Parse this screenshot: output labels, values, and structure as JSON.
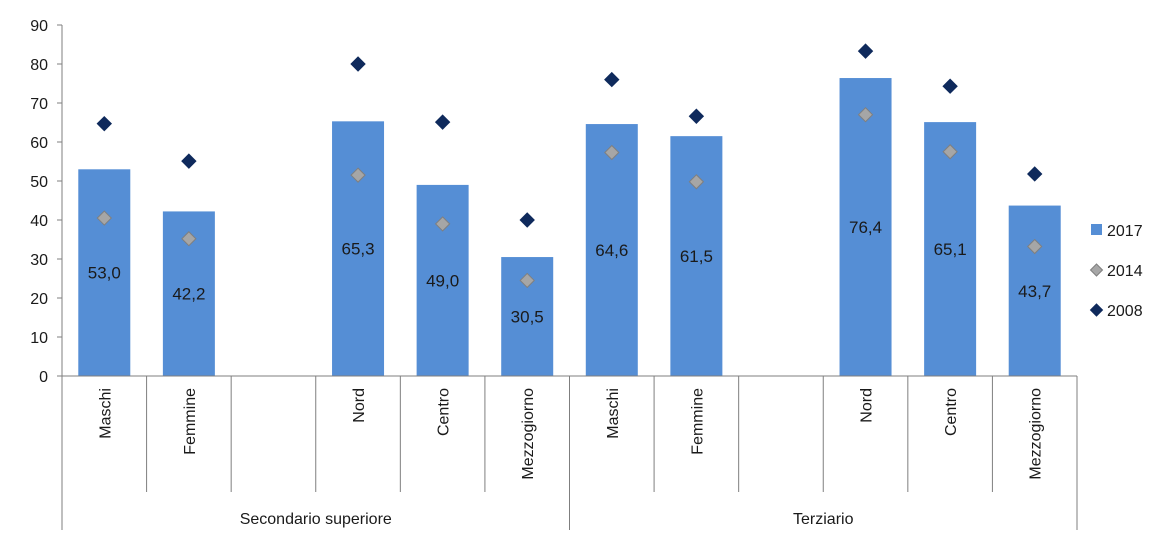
{
  "chart_data": {
    "type": "bar",
    "title": "",
    "xlabel": "",
    "ylabel": "",
    "ylim": [
      0,
      90
    ],
    "yticks": [
      0,
      10,
      20,
      30,
      40,
      50,
      60,
      70,
      80,
      90
    ],
    "grid": false,
    "legend_position": "right",
    "groups": [
      {
        "label": "Secondario superiore",
        "categories": [
          "Maschi",
          "Femmine",
          "",
          "Nord",
          "Centro",
          "Mezzogiorno"
        ]
      },
      {
        "label": "Terziario",
        "categories": [
          "Maschi",
          "Femmine",
          "",
          "Nord",
          "Centro",
          "Mezzogiorno"
        ]
      }
    ],
    "series": [
      {
        "name": "2017",
        "kind": "bar",
        "color": "#558ed5",
        "values": [
          53.0,
          42.2,
          null,
          65.3,
          49.0,
          30.5,
          64.6,
          61.5,
          null,
          76.4,
          65.1,
          43.7
        ],
        "labels": [
          "53,0",
          "42,2",
          "",
          "65,3",
          "49,0",
          "30,5",
          "64,6",
          "61,5",
          "",
          "76,4",
          "65,1",
          "43,7"
        ]
      },
      {
        "name": "2014",
        "kind": "marker",
        "marker": "diamond",
        "color": "#a6a6a6",
        "values": [
          40.5,
          35.2,
          null,
          51.5,
          39.0,
          24.5,
          57.3,
          49.8,
          null,
          67.0,
          57.5,
          33.2
        ]
      },
      {
        "name": "2008",
        "kind": "marker",
        "marker": "diamond",
        "color": "#0f2a5c",
        "values": [
          64.7,
          55.1,
          null,
          80.0,
          65.1,
          40.0,
          76.0,
          66.6,
          null,
          83.3,
          74.3,
          51.8
        ]
      }
    ]
  }
}
